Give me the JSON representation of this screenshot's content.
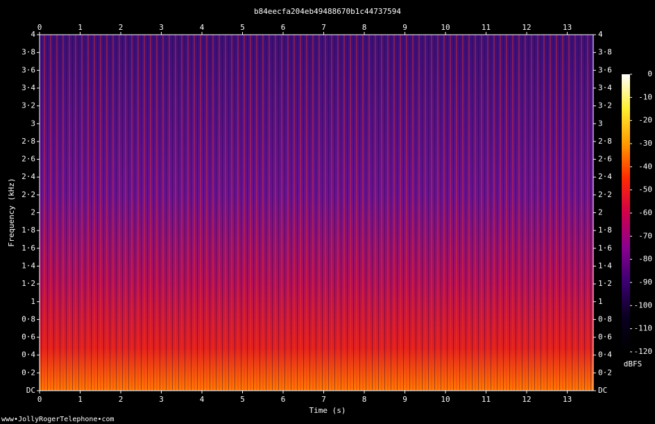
{
  "chart_data": {
    "type": "spectrogram",
    "title": "b84eecfa204eb49488670b1c44737594",
    "xlabel": "Time (s)",
    "ylabel": "Frequency (kHz)",
    "credit": "www•JollyRogerTelephone•com",
    "xlim": [
      0,
      13.64
    ],
    "xticks": [
      0,
      1,
      2,
      3,
      4,
      5,
      6,
      7,
      8,
      9,
      10,
      11,
      12,
      13
    ],
    "ylim": [
      0,
      4
    ],
    "yticks": [
      {
        "value": 0,
        "label": "DC"
      },
      {
        "value": 0.2,
        "label": "0·2"
      },
      {
        "value": 0.4,
        "label": "0·4"
      },
      {
        "value": 0.6,
        "label": "0·6"
      },
      {
        "value": 0.8,
        "label": "0·8"
      },
      1,
      {
        "value": 1.2,
        "label": "1·2"
      },
      {
        "value": 1.4,
        "label": "1·4"
      },
      {
        "value": 1.6,
        "label": "1·6"
      },
      {
        "value": 1.8,
        "label": "1·8"
      },
      2,
      {
        "value": 2.2,
        "label": "2·2"
      },
      {
        "value": 2.4,
        "label": "2·4"
      },
      {
        "value": 2.6,
        "label": "2·6"
      },
      {
        "value": 2.8,
        "label": "2·8"
      },
      3,
      {
        "value": 3.2,
        "label": "3·2"
      },
      {
        "value": 3.4,
        "label": "3·4"
      },
      {
        "value": 3.6,
        "label": "3·6"
      },
      {
        "value": 3.8,
        "label": "3·8"
      },
      4
    ],
    "colorbar": {
      "label": "dBFS",
      "lim": [
        -120,
        0
      ],
      "ticks": [
        0,
        -10,
        -20,
        -30,
        -40,
        -50,
        -60,
        -70,
        -80,
        -90,
        -100,
        -110,
        -120
      ]
    },
    "colormap": [
      "#ffffff",
      "#ffee30",
      "#ff9a00",
      "#ff2a00",
      "#d0004a",
      "#8a0090",
      "#3a0070",
      "#0a0020",
      "#000000"
    ]
  }
}
